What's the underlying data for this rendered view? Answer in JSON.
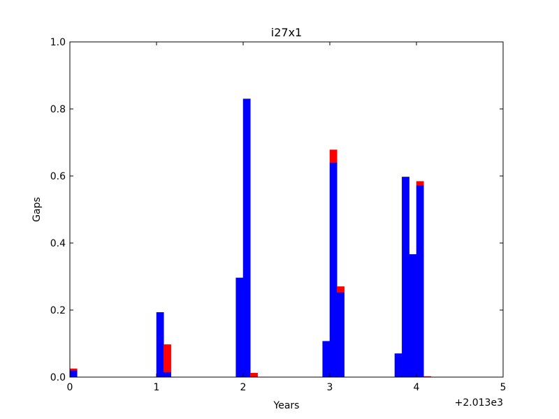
{
  "chart_data": {
    "type": "bar",
    "stacked": true,
    "title": "i27x1",
    "xlabel": "Years",
    "ylabel": "Gaps",
    "x_offset_label": "+2.013e3",
    "xlim": [
      0,
      5
    ],
    "ylim": [
      0,
      1.0
    ],
    "x_ticks": [
      "0",
      "1",
      "2",
      "3",
      "4",
      "5"
    ],
    "y_ticks": [
      "0.0",
      "0.2",
      "0.4",
      "0.6",
      "0.8",
      "1.0"
    ],
    "bin_width": 0.08333,
    "grid": false,
    "legend": "none",
    "bin_starts": [
      0.0,
      1.0,
      1.0833,
      1.9167,
      2.0,
      2.0833,
      2.9167,
      3.0,
      3.0833,
      3.75,
      3.8333,
      3.9167,
      4.0,
      4.0833
    ],
    "series": [
      {
        "color": "#0000ff",
        "values": [
          0.02,
          0.193,
          0.015,
          0.296,
          0.83,
          0.0,
          0.107,
          0.64,
          0.253,
          0.07,
          0.597,
          0.366,
          0.572,
          0.0
        ]
      },
      {
        "color": "#ff0000",
        "values": [
          0.005,
          0.0,
          0.082,
          0.0,
          0.0,
          0.012,
          0.0,
          0.038,
          0.017,
          0.0,
          0.0,
          0.0,
          0.012,
          0.002
        ]
      }
    ]
  }
}
